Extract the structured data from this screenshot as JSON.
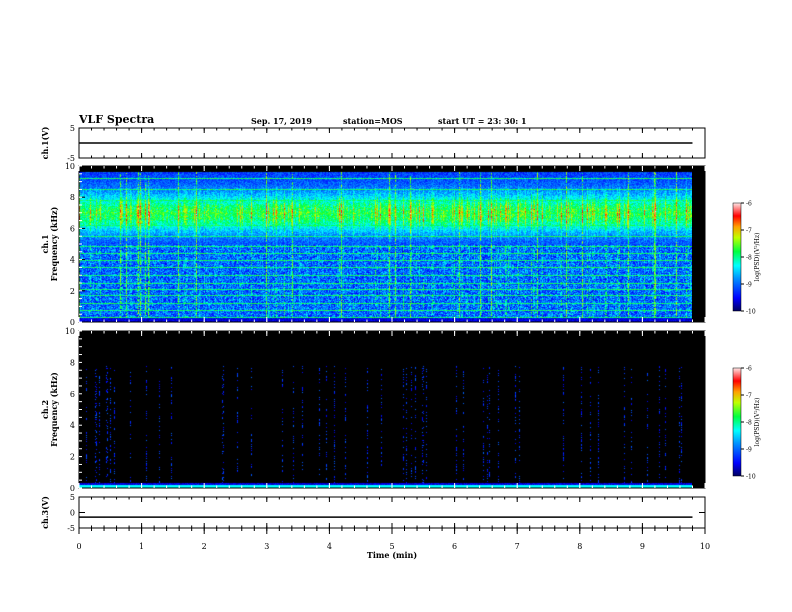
{
  "header": {
    "title": "VLF Spectra",
    "date": "Sep. 17, 2019",
    "station": "station=MOS",
    "start": "start  UT =  23: 30: 1"
  },
  "colors": {
    "colormap": [
      "#000080",
      "#0000ff",
      "#0080ff",
      "#00e0ff",
      "#00ff80",
      "#80ff00",
      "#ffff00",
      "#ff8000",
      "#ff0000",
      "#ffd0d0"
    ]
  },
  "chart_data": [
    {
      "id": "ch1v",
      "type": "line",
      "ylabel": "ch.1(V)",
      "ylim": [
        -5,
        5
      ],
      "yticks": [
        "5",
        "-5"
      ],
      "x": [
        0,
        9.8
      ],
      "y": [
        0,
        0
      ]
    },
    {
      "id": "ch1",
      "type": "heatmap",
      "ylabel": "ch.1\nFrequency (kHz)",
      "ylim": [
        0,
        10
      ],
      "yticks": [
        "0",
        "2",
        "4",
        "6",
        "8",
        "10"
      ],
      "xlim": [
        0,
        9.8
      ],
      "colorbar": {
        "label": "log(PSD)(V²/Hz)",
        "ticks": [
          "-6",
          "-7",
          "-8",
          "-9",
          "-10"
        ],
        "range": [
          -10,
          -6
        ]
      },
      "band_levels_kHz": [
        0.3,
        0.8,
        1.2,
        1.7,
        2.1,
        2.5,
        3.0,
        3.5,
        4.0,
        4.4,
        4.9,
        5.5,
        6.2,
        7.0,
        7.8,
        8.5,
        9.2
      ]
    },
    {
      "id": "ch2",
      "type": "heatmap",
      "ylabel": "ch.2\nFrequency (kHz)",
      "ylim": [
        0,
        10
      ],
      "yticks": [
        "0",
        "2",
        "4",
        "6",
        "8",
        "10"
      ],
      "xlim": [
        0,
        9.8
      ],
      "colorbar": {
        "label": "log(PSD)(V²/Hz)",
        "ticks": [
          "-6",
          "-7",
          "-8",
          "-9",
          "-10"
        ],
        "range": [
          -10,
          -6
        ]
      }
    },
    {
      "id": "ch3v",
      "type": "line",
      "ylabel": "ch.3(V)",
      "ylim": [
        -5,
        5
      ],
      "yticks": [
        "5",
        "0",
        "-5"
      ],
      "x": [
        0,
        9.8
      ],
      "y": [
        -1.5,
        -1.5
      ]
    }
  ],
  "xaxis": {
    "label": "Time (min)",
    "xlim": [
      0,
      10
    ],
    "ticks": [
      "0",
      "1",
      "2",
      "3",
      "4",
      "5",
      "6",
      "7",
      "8",
      "9",
      "10"
    ]
  }
}
